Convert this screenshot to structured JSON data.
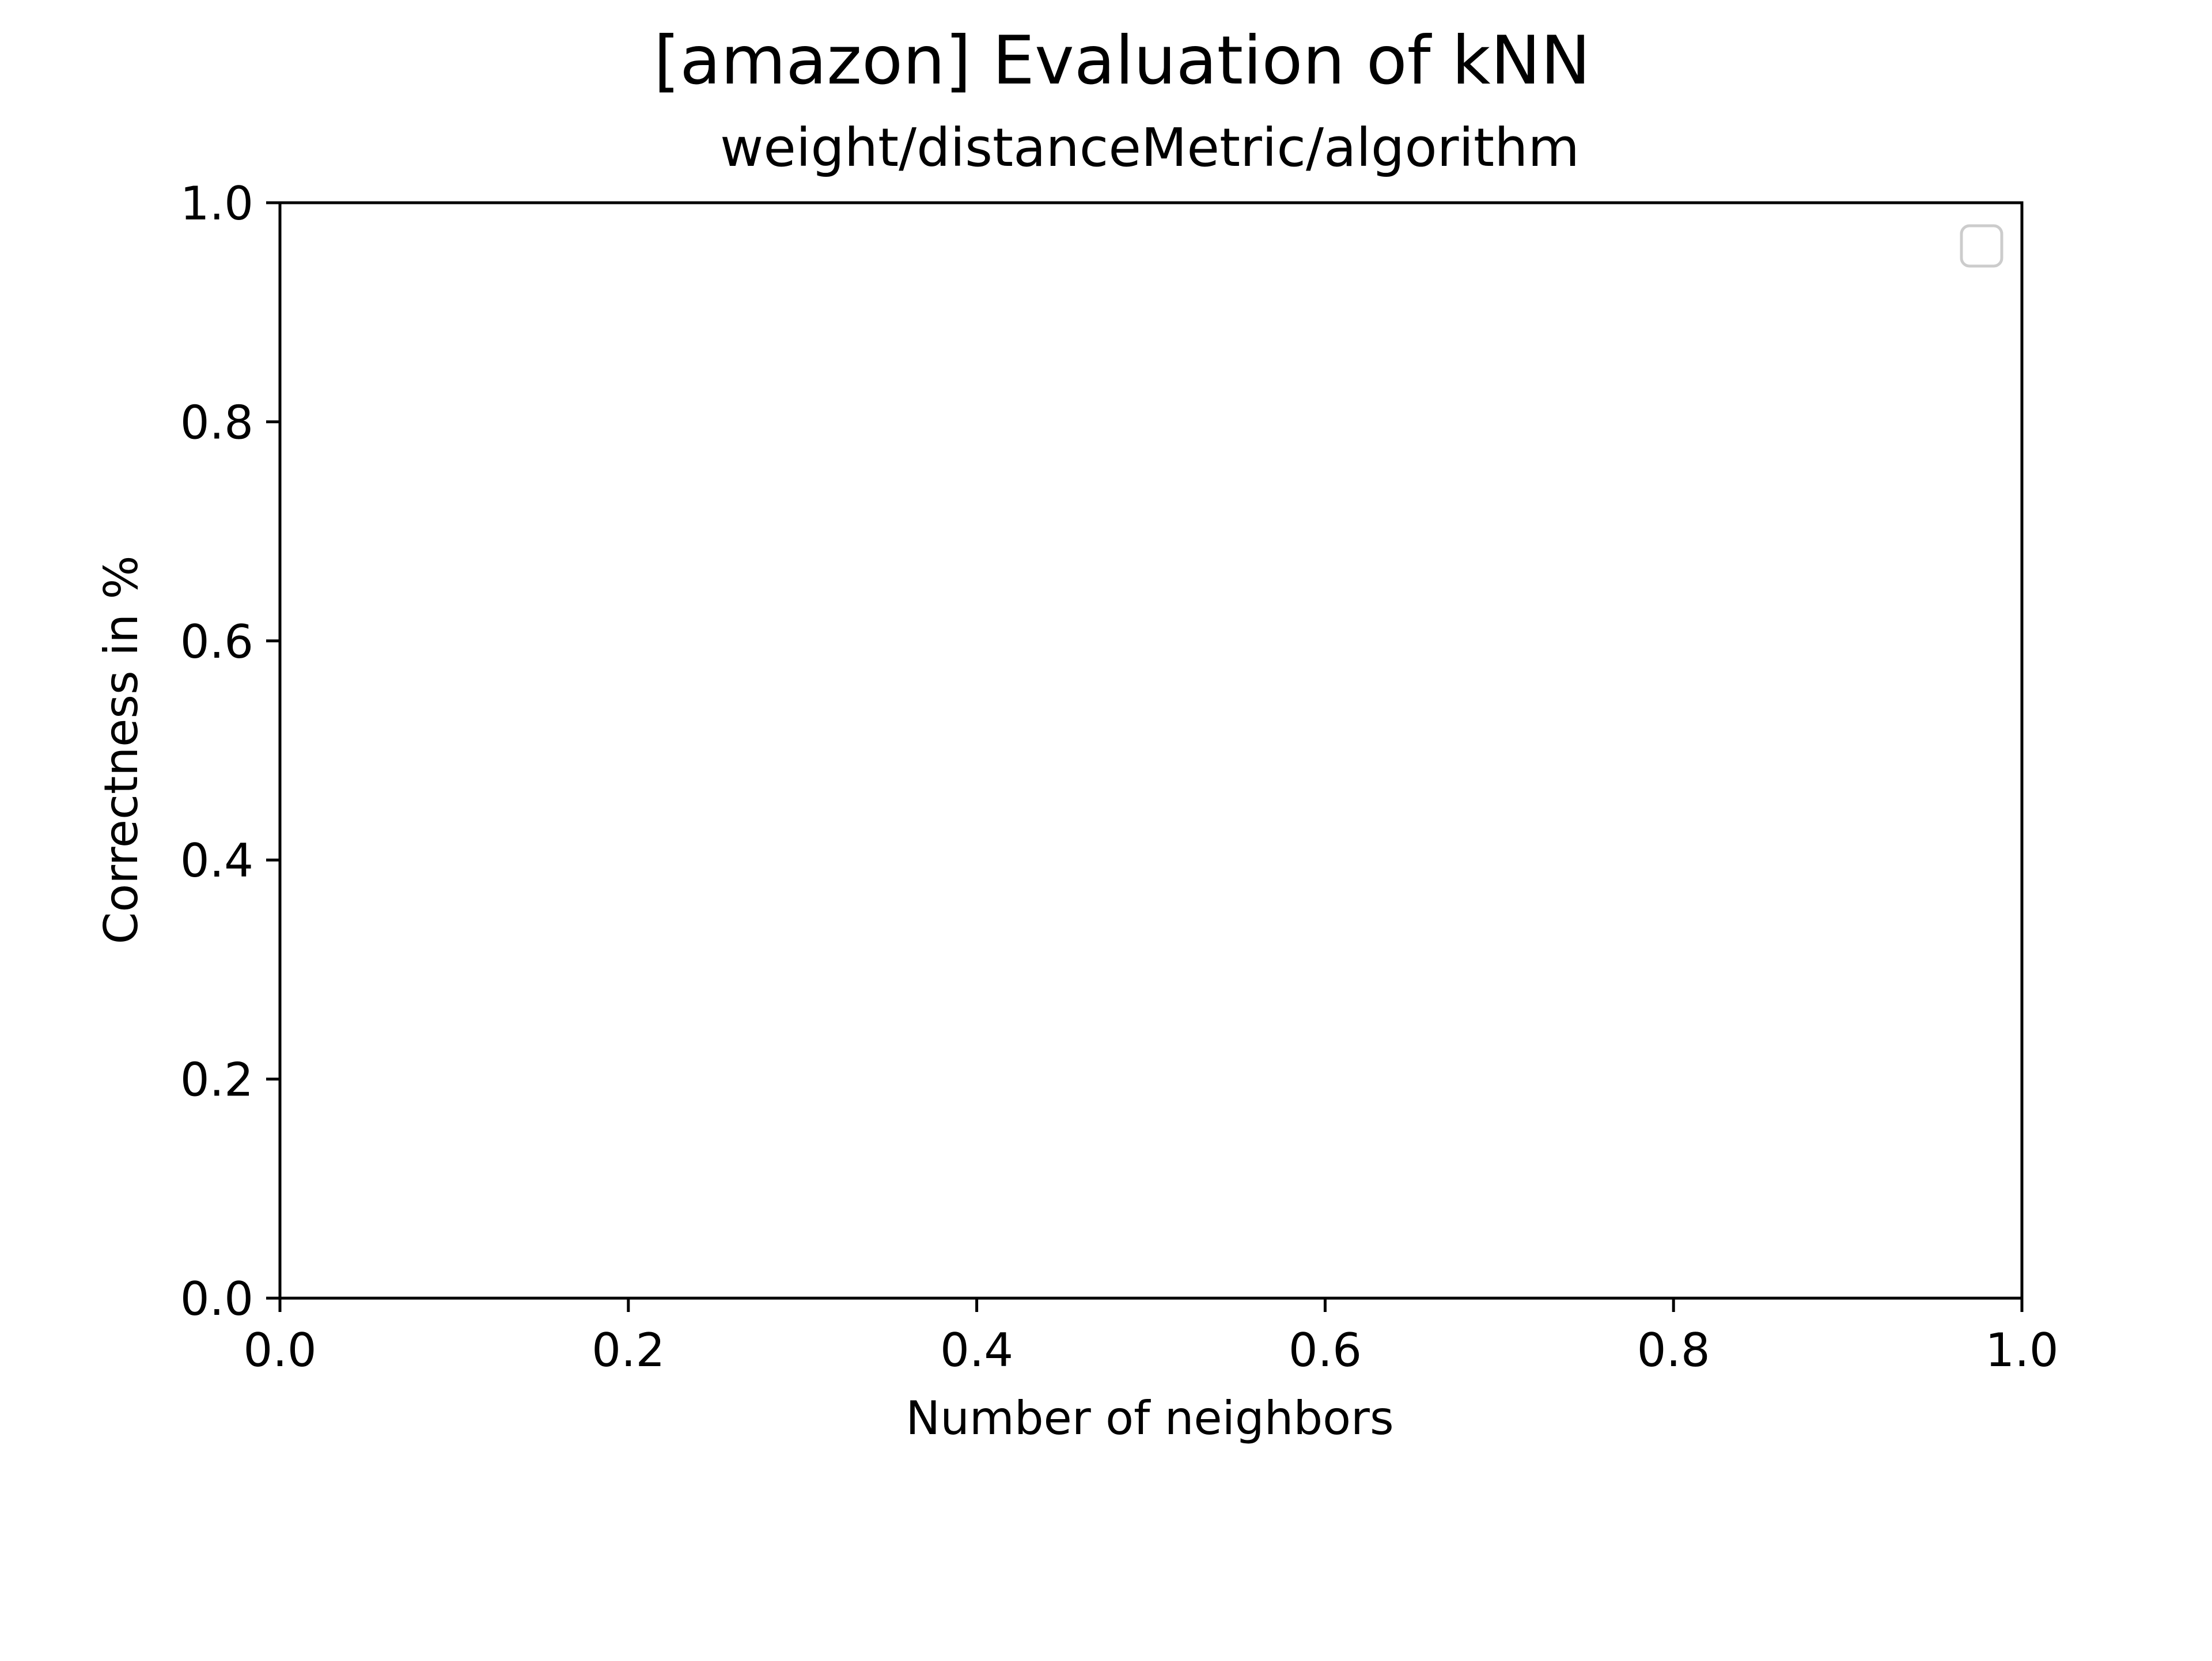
{
  "chart_data": {
    "type": "line",
    "title": "[amazon] Evaluation of kNN",
    "subtitle": "weight/distanceMetric/algorithm",
    "xlabel": "Number of neighbors",
    "ylabel": "Correctness in %",
    "xlim": [
      0.0,
      1.0
    ],
    "ylim": [
      0.0,
      1.0
    ],
    "xticks": [
      "0.0",
      "0.2",
      "0.4",
      "0.6",
      "0.8",
      "1.0"
    ],
    "yticks": [
      "0.0",
      "0.2",
      "0.4",
      "0.6",
      "0.8",
      "1.0"
    ],
    "series": [],
    "grid": false,
    "legend": {
      "placement": "upper right",
      "entries": []
    },
    "colors": {
      "axes": "#000000",
      "legend_border": "#cccccc"
    }
  }
}
